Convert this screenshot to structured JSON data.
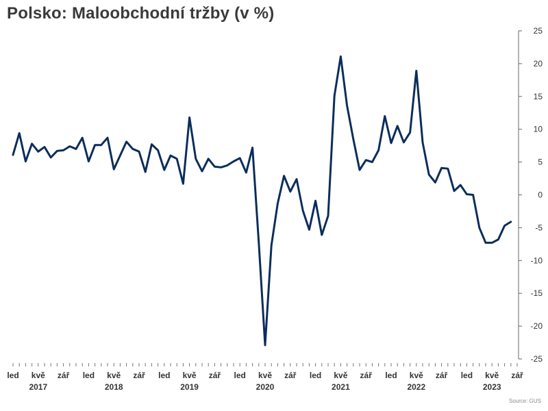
{
  "chart_data": {
    "type": "line",
    "title": "Polsko: Maloobchodní tržby (v %)",
    "source": "Source: GUS",
    "y_axis": {
      "min": -25,
      "max": 25,
      "ticks": [
        25,
        20,
        15,
        10,
        5,
        0,
        -5,
        -10,
        -15,
        -20,
        -25
      ],
      "position": "right"
    },
    "x_axis": {
      "start": "2017-01",
      "end": "2023-09",
      "month_labels": [
        {
          "x": "2017-01",
          "label": "led"
        },
        {
          "x": "2017-05",
          "label": "kvě"
        },
        {
          "x": "2017-09",
          "label": "zář"
        },
        {
          "x": "2018-01",
          "label": "led"
        },
        {
          "x": "2018-05",
          "label": "kvě"
        },
        {
          "x": "2018-09",
          "label": "zář"
        },
        {
          "x": "2019-01",
          "label": "led"
        },
        {
          "x": "2019-05",
          "label": "kvě"
        },
        {
          "x": "2019-09",
          "label": "zář"
        },
        {
          "x": "2020-01",
          "label": "led"
        },
        {
          "x": "2020-05",
          "label": "kvě"
        },
        {
          "x": "2020-09",
          "label": "zář"
        },
        {
          "x": "2021-01",
          "label": "led"
        },
        {
          "x": "2021-05",
          "label": "kvě"
        },
        {
          "x": "2021-09",
          "label": "zář"
        },
        {
          "x": "2022-01",
          "label": "led"
        },
        {
          "x": "2022-05",
          "label": "kvě"
        },
        {
          "x": "2022-09",
          "label": "zář"
        },
        {
          "x": "2023-01",
          "label": "led"
        },
        {
          "x": "2023-05",
          "label": "kvě"
        },
        {
          "x": "2023-09",
          "label": "zář"
        }
      ],
      "year_labels": [
        {
          "x": "2017-05",
          "label": "2017"
        },
        {
          "x": "2018-05",
          "label": "2018"
        },
        {
          "x": "2019-05",
          "label": "2019"
        },
        {
          "x": "2020-05",
          "label": "2020"
        },
        {
          "x": "2021-05",
          "label": "2021"
        },
        {
          "x": "2022-05",
          "label": "2022"
        },
        {
          "x": "2023-05",
          "label": "2023"
        }
      ]
    },
    "series": [
      {
        "color": "#0b2d5b",
        "points": [
          {
            "x": "2017-01",
            "y": 6.1
          },
          {
            "x": "2017-02",
            "y": 9.4
          },
          {
            "x": "2017-03",
            "y": 5.1
          },
          {
            "x": "2017-04",
            "y": 7.8
          },
          {
            "x": "2017-05",
            "y": 6.6
          },
          {
            "x": "2017-06",
            "y": 7.3
          },
          {
            "x": "2017-07",
            "y": 5.7
          },
          {
            "x": "2017-08",
            "y": 6.7
          },
          {
            "x": "2017-09",
            "y": 6.8
          },
          {
            "x": "2017-10",
            "y": 7.4
          },
          {
            "x": "2017-11",
            "y": 7.0
          },
          {
            "x": "2017-12",
            "y": 8.7
          },
          {
            "x": "2018-01",
            "y": 5.1
          },
          {
            "x": "2018-02",
            "y": 7.6
          },
          {
            "x": "2018-03",
            "y": 7.6
          },
          {
            "x": "2018-04",
            "y": 8.7
          },
          {
            "x": "2018-05",
            "y": 3.9
          },
          {
            "x": "2018-06",
            "y": 6.0
          },
          {
            "x": "2018-07",
            "y": 8.1
          },
          {
            "x": "2018-08",
            "y": 7.0
          },
          {
            "x": "2018-09",
            "y": 6.6
          },
          {
            "x": "2018-10",
            "y": 3.5
          },
          {
            "x": "2018-11",
            "y": 7.7
          },
          {
            "x": "2018-12",
            "y": 6.8
          },
          {
            "x": "2019-01",
            "y": 3.8
          },
          {
            "x": "2019-02",
            "y": 6.0
          },
          {
            "x": "2019-03",
            "y": 5.5
          },
          {
            "x": "2019-04",
            "y": 1.7
          },
          {
            "x": "2019-05",
            "y": 11.8
          },
          {
            "x": "2019-06",
            "y": 5.5
          },
          {
            "x": "2019-07",
            "y": 3.6
          },
          {
            "x": "2019-08",
            "y": 5.5
          },
          {
            "x": "2019-09",
            "y": 4.3
          },
          {
            "x": "2019-10",
            "y": 4.2
          },
          {
            "x": "2019-11",
            "y": 4.5
          },
          {
            "x": "2019-12",
            "y": 5.1
          },
          {
            "x": "2020-01",
            "y": 5.6
          },
          {
            "x": "2020-02",
            "y": 3.4
          },
          {
            "x": "2020-03",
            "y": 7.2
          },
          {
            "x": "2020-04",
            "y": -7.3
          },
          {
            "x": "2020-05",
            "y": -22.9
          },
          {
            "x": "2020-06",
            "y": -7.7
          },
          {
            "x": "2020-07",
            "y": -1.3
          },
          {
            "x": "2020-08",
            "y": 2.9
          },
          {
            "x": "2020-09",
            "y": 0.5
          },
          {
            "x": "2020-10",
            "y": 2.4
          },
          {
            "x": "2020-11",
            "y": -2.4
          },
          {
            "x": "2020-12",
            "y": -5.3
          },
          {
            "x": "2021-01",
            "y": -0.9
          },
          {
            "x": "2021-02",
            "y": -6.1
          },
          {
            "x": "2021-03",
            "y": -3.2
          },
          {
            "x": "2021-04",
            "y": 15.1
          },
          {
            "x": "2021-05",
            "y": 21.1
          },
          {
            "x": "2021-06",
            "y": 13.6
          },
          {
            "x": "2021-07",
            "y": 8.5
          },
          {
            "x": "2021-08",
            "y": 3.8
          },
          {
            "x": "2021-09",
            "y": 5.3
          },
          {
            "x": "2021-10",
            "y": 5.0
          },
          {
            "x": "2021-11",
            "y": 6.8
          },
          {
            "x": "2021-12",
            "y": 12.0
          },
          {
            "x": "2022-01",
            "y": 7.9
          },
          {
            "x": "2022-02",
            "y": 10.5
          },
          {
            "x": "2022-03",
            "y": 8.0
          },
          {
            "x": "2022-04",
            "y": 9.5
          },
          {
            "x": "2022-05",
            "y": 18.9
          },
          {
            "x": "2022-06",
            "y": 8.0
          },
          {
            "x": "2022-07",
            "y": 3.1
          },
          {
            "x": "2022-08",
            "y": 1.9
          },
          {
            "x": "2022-09",
            "y": 4.1
          },
          {
            "x": "2022-10",
            "y": 4.0
          },
          {
            "x": "2022-11",
            "y": 0.6
          },
          {
            "x": "2022-12",
            "y": 1.5
          },
          {
            "x": "2023-01",
            "y": 0.1
          },
          {
            "x": "2023-02",
            "y": 0.0
          },
          {
            "x": "2023-03",
            "y": -5.0
          },
          {
            "x": "2023-04",
            "y": -7.3
          },
          {
            "x": "2023-05",
            "y": -7.3
          },
          {
            "x": "2023-06",
            "y": -6.8
          },
          {
            "x": "2023-07",
            "y": -4.7
          },
          {
            "x": "2023-08",
            "y": -4.1
          }
        ]
      }
    ],
    "grid": false,
    "legend": "none"
  }
}
